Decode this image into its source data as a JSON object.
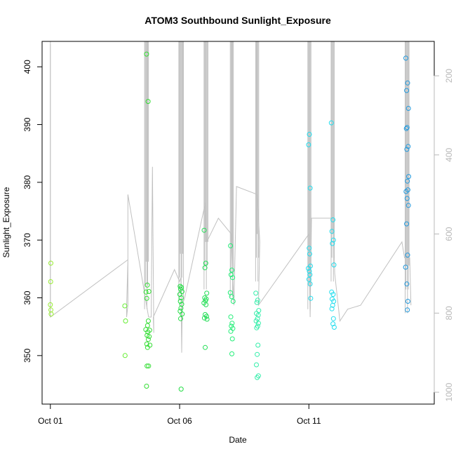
{
  "chart_data": {
    "type": "scatter",
    "title": "ATOM3 Southbound Sunlight_Exposure",
    "xlabel": "Date",
    "ylabel": "Sunlight_Exposure",
    "x_ticks": [
      {
        "label": "Oct 01",
        "day": 1
      },
      {
        "label": "Oct 06",
        "day": 6
      },
      {
        "label": "Oct 11",
        "day": 11
      }
    ],
    "y_ticks": [
      350,
      360,
      370,
      380,
      390,
      400
    ],
    "y2_ticks": [
      200,
      400,
      600,
      800,
      1000
    ],
    "xlim_days": [
      0.68,
      15.85
    ],
    "ylim": [
      341.6,
      404.4
    ],
    "y2lim": [
      1030,
      113
    ],
    "line_color": "#c0c0c0",
    "right_axis_color": "#b8b8b8",
    "point_colors": {
      "Oct 01": "#99ee33",
      "Oct 04": "#66ee33",
      "Oct 05": "#33dd33",
      "Oct 06": "#22dd44",
      "Oct 07": "#22dd55",
      "Oct 08": "#22ee77",
      "Oct 09": "#33eeaa",
      "Oct 11": "#22ddee",
      "Oct 12": "#22ddee",
      "Oct 15": "#2299dd"
    },
    "series": [
      {
        "date": "Oct 01",
        "x": [
          1.02,
          1.01,
          1.0,
          1.02,
          1.03
        ],
        "y": [
          366.0,
          362.8,
          358.8,
          357.9,
          357.2
        ]
      },
      {
        "date": "Oct 04",
        "x": [
          3.88,
          3.91,
          3.89
        ],
        "y": [
          358.6,
          356.0,
          350.0
        ]
      },
      {
        "date": "Oct 05",
        "x": [
          4.72,
          4.78,
          4.75,
          4.81,
          4.7,
          4.73,
          4.79,
          4.76,
          4.69,
          4.84,
          4.77,
          4.74,
          4.82,
          4.79,
          4.73,
          4.85,
          4.76,
          4.74,
          4.8,
          4.72
        ],
        "y": [
          402.2,
          394.0,
          362.2,
          361.1,
          361.0,
          359.9,
          356.0,
          355.2,
          354.5,
          354.4,
          354.1,
          353.5,
          353.3,
          352.8,
          352.0,
          351.8,
          351.4,
          348.2,
          348.2,
          344.7
        ]
      },
      {
        "date": "Oct 06",
        "x": [
          6.02,
          6.07,
          6.04,
          6.09,
          6.01,
          6.06,
          6.03,
          6.08,
          6.05,
          6.02,
          6.1,
          6.04,
          6.06
        ],
        "y": [
          362.0,
          361.8,
          361.5,
          361.1,
          360.6,
          360.0,
          359.4,
          358.9,
          358.2,
          357.7,
          357.2,
          356.4,
          344.2
        ]
      },
      {
        "date": "Oct 07",
        "x": [
          6.95,
          7.01,
          6.98,
          7.05,
          6.97,
          7.03,
          7.0,
          6.94,
          7.02,
          6.99,
          7.04,
          6.96,
          7.06,
          6.99
        ],
        "y": [
          371.7,
          366.0,
          365.2,
          360.8,
          360.0,
          359.8,
          359.5,
          359.1,
          358.8,
          357.1,
          356.8,
          356.5,
          356.3,
          351.4
        ]
      },
      {
        "date": "Oct 08",
        "x": [
          7.97,
          8.02,
          7.99,
          8.05,
          7.96,
          8.01,
          8.07,
          7.98,
          8.03,
          8.0,
          8.06,
          7.98,
          8.04,
          8.02
        ],
        "y": [
          369.0,
          364.8,
          364.0,
          363.5,
          360.9,
          360.2,
          359.4,
          356.7,
          355.6,
          355.1,
          354.7,
          354.2,
          352.9,
          350.3
        ]
      },
      {
        "date": "Oct 09",
        "x": [
          8.95,
          9.02,
          8.99,
          9.06,
          8.97,
          9.04,
          9.01,
          8.96,
          9.05,
          9.02,
          8.98,
          9.03,
          9.0,
          8.97,
          9.05,
          9.0
        ],
        "y": [
          360.8,
          359.6,
          359.2,
          357.8,
          357.3,
          357.0,
          356.4,
          356.0,
          355.6,
          355.1,
          354.8,
          351.8,
          350.2,
          348.4,
          346.5,
          346.2
        ]
      },
      {
        "date": "Oct 11",
        "x": [
          11.02,
          10.99,
          11.05,
          11.01,
          11.03,
          11.06,
          10.98,
          11.02,
          11.04,
          11.0,
          11.05,
          11.07
        ],
        "y": [
          388.3,
          386.5,
          379.0,
          368.6,
          367.6,
          365.5,
          365.1,
          364.6,
          364.0,
          363.2,
          362.4,
          359.9
        ]
      },
      {
        "date": "Oct 12",
        "x": [
          11.87,
          11.93,
          11.89,
          11.95,
          11.91,
          11.97,
          11.88,
          11.94,
          11.9,
          11.96,
          11.92,
          11.89,
          11.95,
          11.93,
          11.98
        ],
        "y": [
          390.3,
          373.5,
          371.5,
          370.0,
          369.4,
          365.7,
          361.0,
          360.6,
          359.8,
          359.4,
          358.7,
          358.1,
          356.4,
          355.5,
          354.9
        ]
      },
      {
        "date": "Oct 15",
        "x": [
          14.75,
          14.82,
          14.78,
          14.85,
          14.8,
          14.77,
          14.84,
          14.79,
          14.86,
          14.81,
          14.83,
          14.76,
          14.8,
          14.85,
          14.78,
          14.82,
          14.74,
          14.79,
          14.83,
          14.81
        ],
        "y": [
          401.5,
          397.2,
          395.9,
          392.8,
          389.5,
          389.3,
          386.2,
          385.7,
          381.0,
          380.2,
          378.7,
          378.4,
          377.2,
          376.0,
          372.8,
          367.4,
          365.3,
          362.4,
          359.4,
          357.9
        ]
      }
    ],
    "line_y2": [
      [
        1.0,
        120
      ],
      [
        1.0,
        810
      ],
      [
        4.0,
        665
      ],
      [
        3.95,
        785
      ],
      [
        3.95,
        810
      ],
      [
        4.0,
        780
      ],
      [
        4.0,
        500
      ],
      [
        4.8,
        810
      ],
      [
        4.9,
        810
      ],
      [
        4.95,
        430
      ],
      [
        5.0,
        850
      ],
      [
        4.98,
        810
      ],
      [
        5.8,
        690
      ],
      [
        6.0,
        720
      ],
      [
        6.05,
        710
      ],
      [
        6.08,
        900
      ],
      [
        6.1,
        780
      ],
      [
        6.2,
        760
      ],
      [
        7.0,
        520
      ],
      [
        7.05,
        620
      ],
      [
        7.5,
        560
      ],
      [
        8.0,
        600
      ],
      [
        8.1,
        780
      ],
      [
        8.2,
        480
      ],
      [
        9.0,
        500
      ],
      [
        9.1,
        620
      ],
      [
        9.05,
        780
      ],
      [
        11.0,
        600
      ],
      [
        11.05,
        810
      ],
      [
        11.1,
        560
      ],
      [
        11.95,
        560
      ],
      [
        12.0,
        700
      ],
      [
        12.2,
        820
      ],
      [
        12.5,
        790
      ],
      [
        13.0,
        780
      ],
      [
        14.6,
        620
      ],
      [
        14.7,
        660
      ],
      [
        14.9,
        660
      ],
      [
        14.95,
        780
      ]
    ]
  }
}
